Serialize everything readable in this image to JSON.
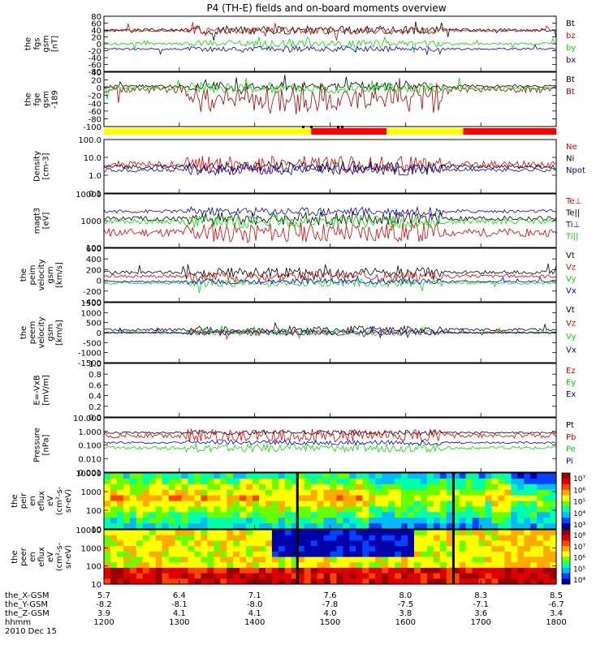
{
  "title": "P4 (TH-E) fields and on-board moments overview",
  "date": "2010 Dec 15",
  "colors": {
    "black": "#000000",
    "red": "#dd0000",
    "green": "#00dd00",
    "blue": "#0000cc",
    "yellow": "#ffff00",
    "bar_red": "#ff0000"
  },
  "status_bar": {
    "segments": [
      {
        "from": "1200",
        "to": "1445",
        "color": "yellow"
      },
      {
        "from": "1445",
        "to": "1545",
        "color": "red"
      },
      {
        "from": "1545",
        "to": "1646",
        "color": "yellow"
      },
      {
        "from": "1646",
        "to": "1800",
        "color": "red"
      }
    ]
  },
  "chart_data": [
    {
      "type": "line",
      "ylabel": [
        "the",
        "fgs",
        "gsm",
        "[nT]"
      ],
      "ytick_labels": [
        "80",
        "60",
        "40",
        "20",
        "0",
        "-20",
        "-40",
        "-60",
        "-80"
      ],
      "ylim": [
        -80,
        80
      ],
      "series": [
        {
          "name": "Bt",
          "color": "black",
          "level": 40,
          "amp": 12,
          "style": "pos"
        },
        {
          "name": "bz",
          "color": "red",
          "level": 38,
          "amp": 10,
          "style": "noisy"
        },
        {
          "name": "by",
          "color": "green",
          "level": 0,
          "amp": 10,
          "style": "noisy"
        },
        {
          "name": "bx",
          "color": "blue",
          "level": -15,
          "amp": 8,
          "style": "noisy"
        }
      ]
    },
    {
      "type": "line",
      "ylabel": [
        "the",
        "fge",
        "gsm",
        "-189"
      ],
      "ytick_labels": [
        "40",
        "20",
        "0",
        "-20",
        "-40",
        "-60",
        "-80",
        "-100"
      ],
      "ylim": [
        -110,
        45
      ],
      "series": [
        {
          "name": "Bt",
          "color": "black",
          "level": 5,
          "amp": 12,
          "style": "noisy"
        },
        {
          "name": "Bt",
          "color": "darkred",
          "level": -5,
          "amp": 25,
          "style": "dips"
        },
        {
          "name": "",
          "color": "green",
          "level": 0,
          "amp": 15,
          "style": "noisy"
        }
      ]
    },
    {
      "type": "line",
      "ylabel": [
        "Density",
        "[cm-3]"
      ],
      "ytick_labels": [
        "100.0",
        "10.0",
        "1.0",
        "0.1"
      ],
      "scale": "log",
      "ylim": [
        0.1,
        100
      ],
      "series": [
        {
          "name": "Ne",
          "color": "red",
          "level": 4,
          "amp": 3,
          "style": "log"
        },
        {
          "name": "Ni",
          "color": "black",
          "level": 3,
          "amp": 2,
          "style": "log"
        },
        {
          "name": "Npot",
          "color": "blue",
          "level": 2,
          "amp": 2,
          "style": "log"
        }
      ]
    },
    {
      "type": "line",
      "ylabel": [
        "magt3",
        "[eV]"
      ],
      "ytick_labels": [
        "10000",
        "1000",
        "100"
      ],
      "scale": "log",
      "ylim": [
        30,
        10000
      ],
      "series": [
        {
          "name": "Te⊥",
          "color": "red",
          "level": 150,
          "amp": 3,
          "style": "log"
        },
        {
          "name": "Te||",
          "color": "black",
          "level": 700,
          "amp": 2,
          "style": "log"
        },
        {
          "name": "Ti⊥",
          "color": "blue",
          "level": 1500,
          "amp": 1.6,
          "style": "log"
        },
        {
          "name": "Ti||",
          "color": "green",
          "level": 500,
          "amp": 2,
          "style": "log"
        }
      ]
    },
    {
      "type": "line",
      "ylabel": [
        "the",
        "peim",
        "velocity",
        "gsm",
        "[km/s]"
      ],
      "ytick_labels": [
        "600",
        "400",
        "200",
        "0",
        "-200",
        "-400"
      ],
      "ylim": [
        -400,
        600
      ],
      "series": [
        {
          "name": "Vt",
          "color": "black",
          "level": 150,
          "amp": 90,
          "style": "pos"
        },
        {
          "name": "Vz",
          "color": "red",
          "level": 80,
          "amp": 90,
          "style": "noisy"
        },
        {
          "name": "Vy",
          "color": "green",
          "level": -50,
          "amp": 70,
          "style": "noisy"
        },
        {
          "name": "Vx",
          "color": "blue",
          "level": -20,
          "amp": 50,
          "style": "noisy"
        }
      ]
    },
    {
      "type": "line",
      "ylabel": [
        "the",
        "peem",
        "velocity",
        "gsm",
        "[km/s]"
      ],
      "ytick_labels": [
        "1500",
        "1000",
        "500",
        "0",
        "-500",
        "-1000",
        "-1500"
      ],
      "ylim": [
        -1500,
        1500
      ],
      "series": [
        {
          "name": "Vt",
          "color": "black",
          "level": 150,
          "amp": 180,
          "style": "pos"
        },
        {
          "name": "Vz",
          "color": "red",
          "level": 0,
          "amp": 150,
          "style": "noisy"
        },
        {
          "name": "Vy",
          "color": "green",
          "level": 0,
          "amp": 150,
          "style": "noisy"
        },
        {
          "name": "Vx",
          "color": "blue",
          "level": 0,
          "amp": 120,
          "style": "noisy"
        }
      ]
    },
    {
      "type": "line",
      "ylabel": [
        "E=-VxB",
        "[mV/m]"
      ],
      "ytick_labels": [
        "1.0",
        "0.8",
        "0.6",
        "0.4",
        "0.2",
        "0.0"
      ],
      "ylim": [
        0,
        1
      ],
      "series": [
        {
          "name": "Ez",
          "color": "red",
          "level": null,
          "amp": 0,
          "style": "none"
        },
        {
          "name": "Ey",
          "color": "green",
          "level": null,
          "amp": 0,
          "style": "none"
        },
        {
          "name": "Ex",
          "color": "blue",
          "level": null,
          "amp": 0,
          "style": "none"
        }
      ]
    },
    {
      "type": "line",
      "ylabel": [
        "Pressure",
        "[nPa]"
      ],
      "ytick_labels": [
        "10.000",
        "1.000",
        "0.100",
        "0.010",
        "0.001"
      ],
      "scale": "log",
      "ylim": [
        0.001,
        10
      ],
      "series": [
        {
          "name": "Pt",
          "color": "black",
          "level": 0.8,
          "amp": 1.5,
          "style": "log"
        },
        {
          "name": "Pb",
          "color": "red",
          "level": 0.5,
          "amp": 3,
          "style": "log"
        },
        {
          "name": "Pe",
          "color": "green",
          "level": 0.06,
          "amp": 2,
          "style": "log"
        },
        {
          "name": "Pi",
          "color": "blue",
          "level": 0.15,
          "amp": 1.5,
          "style": "log"
        }
      ]
    },
    {
      "type": "heatmap",
      "ylabel": [
        "the",
        "peir",
        "en",
        "eflux",
        "eV",
        "(cm²-s-",
        "sr-eV)"
      ],
      "ytick_labels": [
        "10000",
        "1000",
        "100",
        "10"
      ],
      "colorbar_labels": [
        "10⁷",
        "10⁶",
        "10⁵",
        "10⁴",
        "10³"
      ]
    },
    {
      "type": "heatmap",
      "ylabel": [
        "the",
        "peer",
        "en",
        "eflux",
        "eV",
        "(cm²-s-",
        "sr-eV)"
      ],
      "ytick_labels": [
        "10000",
        "1000",
        "100",
        "10"
      ],
      "colorbar_labels": [
        "10⁸",
        "10⁷",
        "10⁶",
        "10⁵",
        "10⁴"
      ]
    }
  ],
  "x_axis": {
    "row_labels": [
      "the_X-GSM",
      "the_Y-GSM",
      "the_Z-GSM",
      "hhmm"
    ],
    "ticks": [
      {
        "x": "5.7",
        "y": "-8.2",
        "z": "3.9",
        "t": "1200"
      },
      {
        "x": "6.4",
        "y": "-8.1",
        "z": "4.1",
        "t": "1300"
      },
      {
        "x": "7.1",
        "y": "-8.0",
        "z": "4.1",
        "t": "1400"
      },
      {
        "x": "7.6",
        "y": "-7.8",
        "z": "4.0",
        "t": "1500"
      },
      {
        "x": "8.0",
        "y": "-7.5",
        "z": "3.8",
        "t": "1600"
      },
      {
        "x": "8.3",
        "y": "-7.1",
        "z": "3.6",
        "t": "1700"
      },
      {
        "x": "8.5",
        "y": "-6.7",
        "z": "3.4",
        "t": "1800"
      }
    ]
  }
}
